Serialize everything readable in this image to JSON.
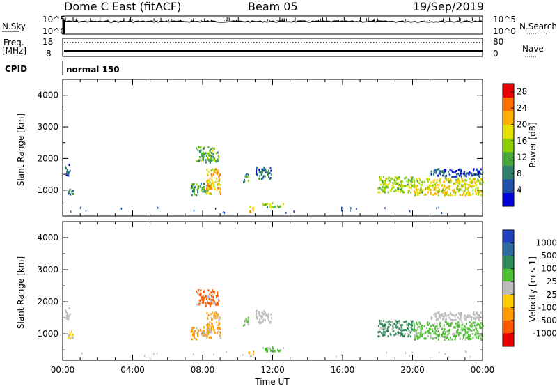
{
  "header": {
    "radar": "Dome C East (fitACF)",
    "beam": "Beam 05",
    "date": "19/Sep/2019"
  },
  "params": {
    "nsky_label": "N.Sky",
    "nsearch_label": "N.Search",
    "nsky_ticks": [
      "10^5",
      "10^0"
    ],
    "freq_label_1": "Freq.",
    "freq_label_2": "[MHz]",
    "freq_ticks": [
      "18",
      "8"
    ],
    "nave_label": "Nave",
    "nave_ticks": [
      "80",
      "0"
    ],
    "cpid_label": "CPID",
    "cpid_value": "normal 150"
  },
  "chart_data": [
    {
      "type": "heatmap",
      "panel": "power",
      "xlabel": "Time UT",
      "ylabel": "Slant Range [km]",
      "x_ticks": [
        "00:00",
        "04:00",
        "08:00",
        "12:00",
        "16:00",
        "20:00",
        "00:00"
      ],
      "xlim_hours": [
        0,
        24
      ],
      "ylim_km": [
        180,
        4500
      ],
      "y_ticks": [
        1000,
        2000,
        3000,
        4000
      ],
      "colorbar": {
        "label": "Power [dB]",
        "ticks": [
          4,
          8,
          12,
          16,
          20,
          24,
          28
        ],
        "range": [
          0,
          30
        ],
        "colors": [
          "#0000d8",
          "#1f4fa8",
          "#2f7f6e",
          "#46a83a",
          "#8cd000",
          "#e8e000",
          "#ffb000",
          "#ff7000",
          "#e60000"
        ]
      },
      "scatter_regions": [
        {
          "t": [
            0.1,
            0.4
          ],
          "r": [
            1450,
            1850
          ],
          "value": 6
        },
        {
          "t": [
            0.3,
            0.6
          ],
          "r": [
            850,
            1100
          ],
          "value": 7
        },
        {
          "t": [
            7.3,
            8.3
          ],
          "r": [
            850,
            1250
          ],
          "value": 10
        },
        {
          "t": [
            8.2,
            9.0
          ],
          "r": [
            900,
            1700
          ],
          "value": 20
        },
        {
          "t": [
            7.6,
            8.9
          ],
          "r": [
            1900,
            2400
          ],
          "value": 12
        },
        {
          "t": [
            10.3,
            10.6
          ],
          "r": [
            1250,
            1550
          ],
          "value": 9
        },
        {
          "t": [
            11.0,
            11.9
          ],
          "r": [
            1350,
            1750
          ],
          "value": 7
        },
        {
          "t": [
            10.6,
            10.9
          ],
          "r": [
            330,
            520
          ],
          "value": 22
        },
        {
          "t": [
            11.4,
            12.6
          ],
          "r": [
            480,
            620
          ],
          "value": 14
        },
        {
          "t": [
            18.0,
            20.0
          ],
          "r": [
            950,
            1450
          ],
          "value": 15
        },
        {
          "t": [
            20.0,
            24.0
          ],
          "r": [
            850,
            1400
          ],
          "value": 18
        },
        {
          "t": [
            21.0,
            24.0
          ],
          "r": [
            1450,
            1700
          ],
          "value": 5
        }
      ]
    },
    {
      "type": "heatmap",
      "panel": "velocity",
      "xlabel": "Time UT",
      "ylabel": "Slant Range [km]",
      "x_ticks": [
        "00:00",
        "04:00",
        "08:00",
        "12:00",
        "16:00",
        "20:00",
        "00:00"
      ],
      "xlim_hours": [
        0,
        24
      ],
      "ylim_km": [
        180,
        4500
      ],
      "y_ticks": [
        1000,
        2000,
        3000,
        4000
      ],
      "colorbar": {
        "label": "Velocity [m s-1]",
        "ticks": [
          "1000",
          "500",
          "100",
          "25",
          "-25",
          "-100",
          "-500",
          "-1000"
        ],
        "colors": [
          "#2040c0",
          "#2e6aa0",
          "#2e8a58",
          "#4cc030",
          "#bdbdbd",
          "#ffcc00",
          "#ff9a00",
          "#ff5a00",
          "#e60000"
        ]
      },
      "scatter_regions": [
        {
          "t": [
            0.1,
            0.4
          ],
          "r": [
            1450,
            1850
          ],
          "value": "25"
        },
        {
          "t": [
            0.3,
            0.6
          ],
          "r": [
            850,
            1100
          ],
          "value": "-25"
        },
        {
          "t": [
            7.3,
            8.3
          ],
          "r": [
            850,
            1250
          ],
          "value": "-100"
        },
        {
          "t": [
            8.2,
            9.0
          ],
          "r": [
            900,
            1700
          ],
          "value": "-100"
        },
        {
          "t": [
            7.6,
            8.9
          ],
          "r": [
            1900,
            2400
          ],
          "value": "-500"
        },
        {
          "t": [
            10.3,
            10.6
          ],
          "r": [
            1250,
            1550
          ],
          "value": "100"
        },
        {
          "t": [
            11.0,
            11.9
          ],
          "r": [
            1350,
            1750
          ],
          "value": "25"
        },
        {
          "t": [
            10.6,
            10.9
          ],
          "r": [
            330,
            520
          ],
          "value": "-100"
        },
        {
          "t": [
            11.4,
            12.6
          ],
          "r": [
            480,
            620
          ],
          "value": "100"
        },
        {
          "t": [
            18.0,
            20.0
          ],
          "r": [
            950,
            1450
          ],
          "value": "500"
        },
        {
          "t": [
            20.0,
            24.0
          ],
          "r": [
            850,
            1400
          ],
          "value": "100"
        },
        {
          "t": [
            21.0,
            24.0
          ],
          "r": [
            1450,
            1700
          ],
          "value": "25"
        }
      ]
    }
  ]
}
